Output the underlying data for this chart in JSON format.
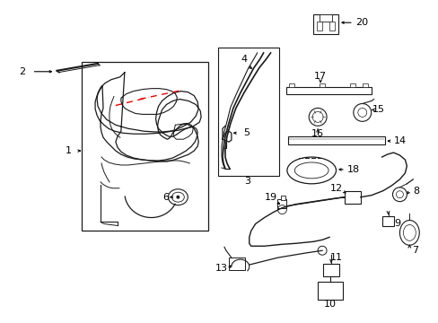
{
  "bg_color": "#ffffff",
  "line_color": "#1a1a1a",
  "red_dash_color": "#ee0000",
  "figsize": [
    4.89,
    3.6
  ],
  "dpi": 100
}
